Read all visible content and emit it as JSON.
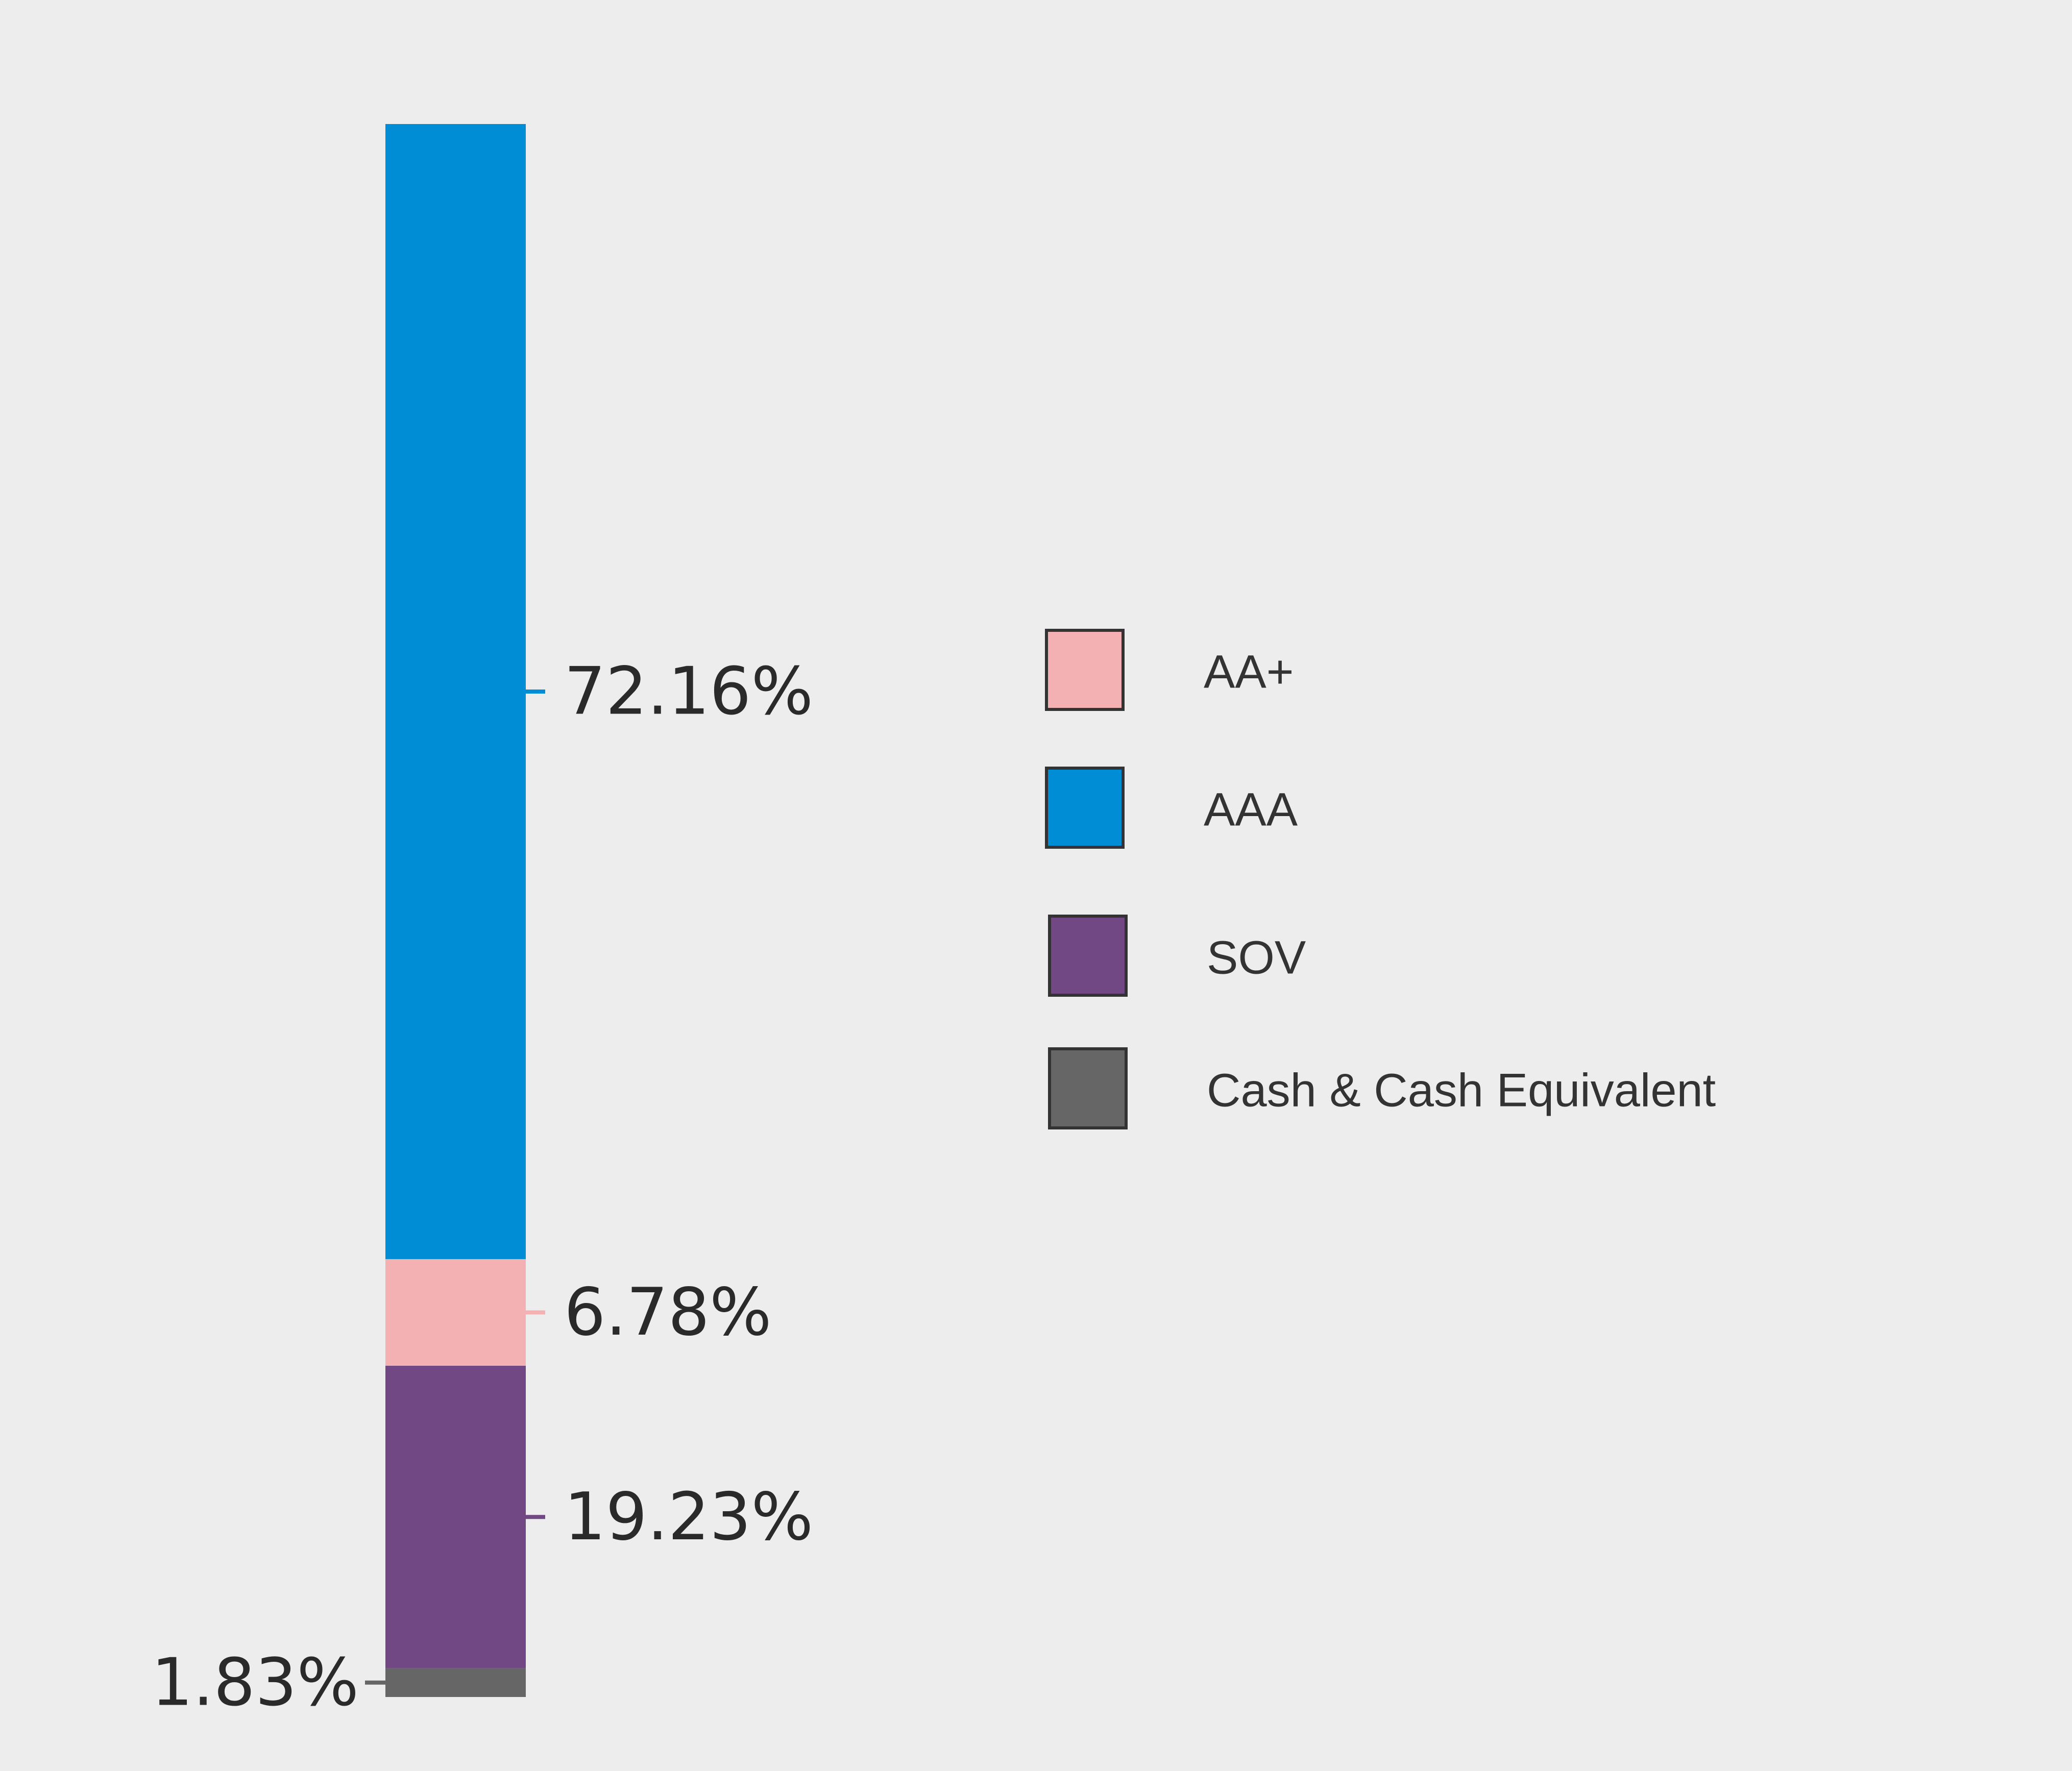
{
  "chart_data": {
    "type": "bar",
    "stacked": true,
    "orientation": "vertical",
    "ylim": [
      0,
      100
    ],
    "series": [
      {
        "name": "Cash & Cash Equivalent",
        "value": 1.83,
        "label": "1.83%",
        "color": "#666666",
        "label_side": "left"
      },
      {
        "name": "SOV",
        "value": 19.23,
        "label": "19.23%",
        "color": "#714784",
        "label_side": "right"
      },
      {
        "name": "AA+",
        "value": 6.78,
        "label": "6.78%",
        "color": "#f4b1b4",
        "label_side": "right"
      },
      {
        "name": "AAA",
        "value": 72.16,
        "label": "72.16%",
        "color": "#008dd6",
        "label_side": "right"
      }
    ],
    "legend": {
      "placement": "right",
      "items": [
        {
          "label": "AA+",
          "color": "#f4b1b4"
        },
        {
          "label": "AAA",
          "color": "#008dd6"
        },
        {
          "label": "SOV",
          "color": "#714784"
        },
        {
          "label": "Cash & Cash Equivalent",
          "color": "#666666"
        }
      ]
    },
    "grid": false
  }
}
